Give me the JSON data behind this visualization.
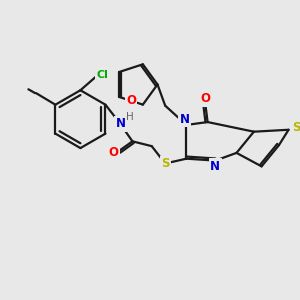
{
  "bg_color": "#e8e8e8",
  "bond_color": "#1a1a1a",
  "atom_colors": {
    "N": "#0000cc",
    "O": "#ff0000",
    "S": "#b8b800",
    "Cl": "#00aa00",
    "H": "#666666",
    "C": "#1a1a1a"
  },
  "figsize": [
    3.0,
    3.0
  ],
  "dpi": 100
}
